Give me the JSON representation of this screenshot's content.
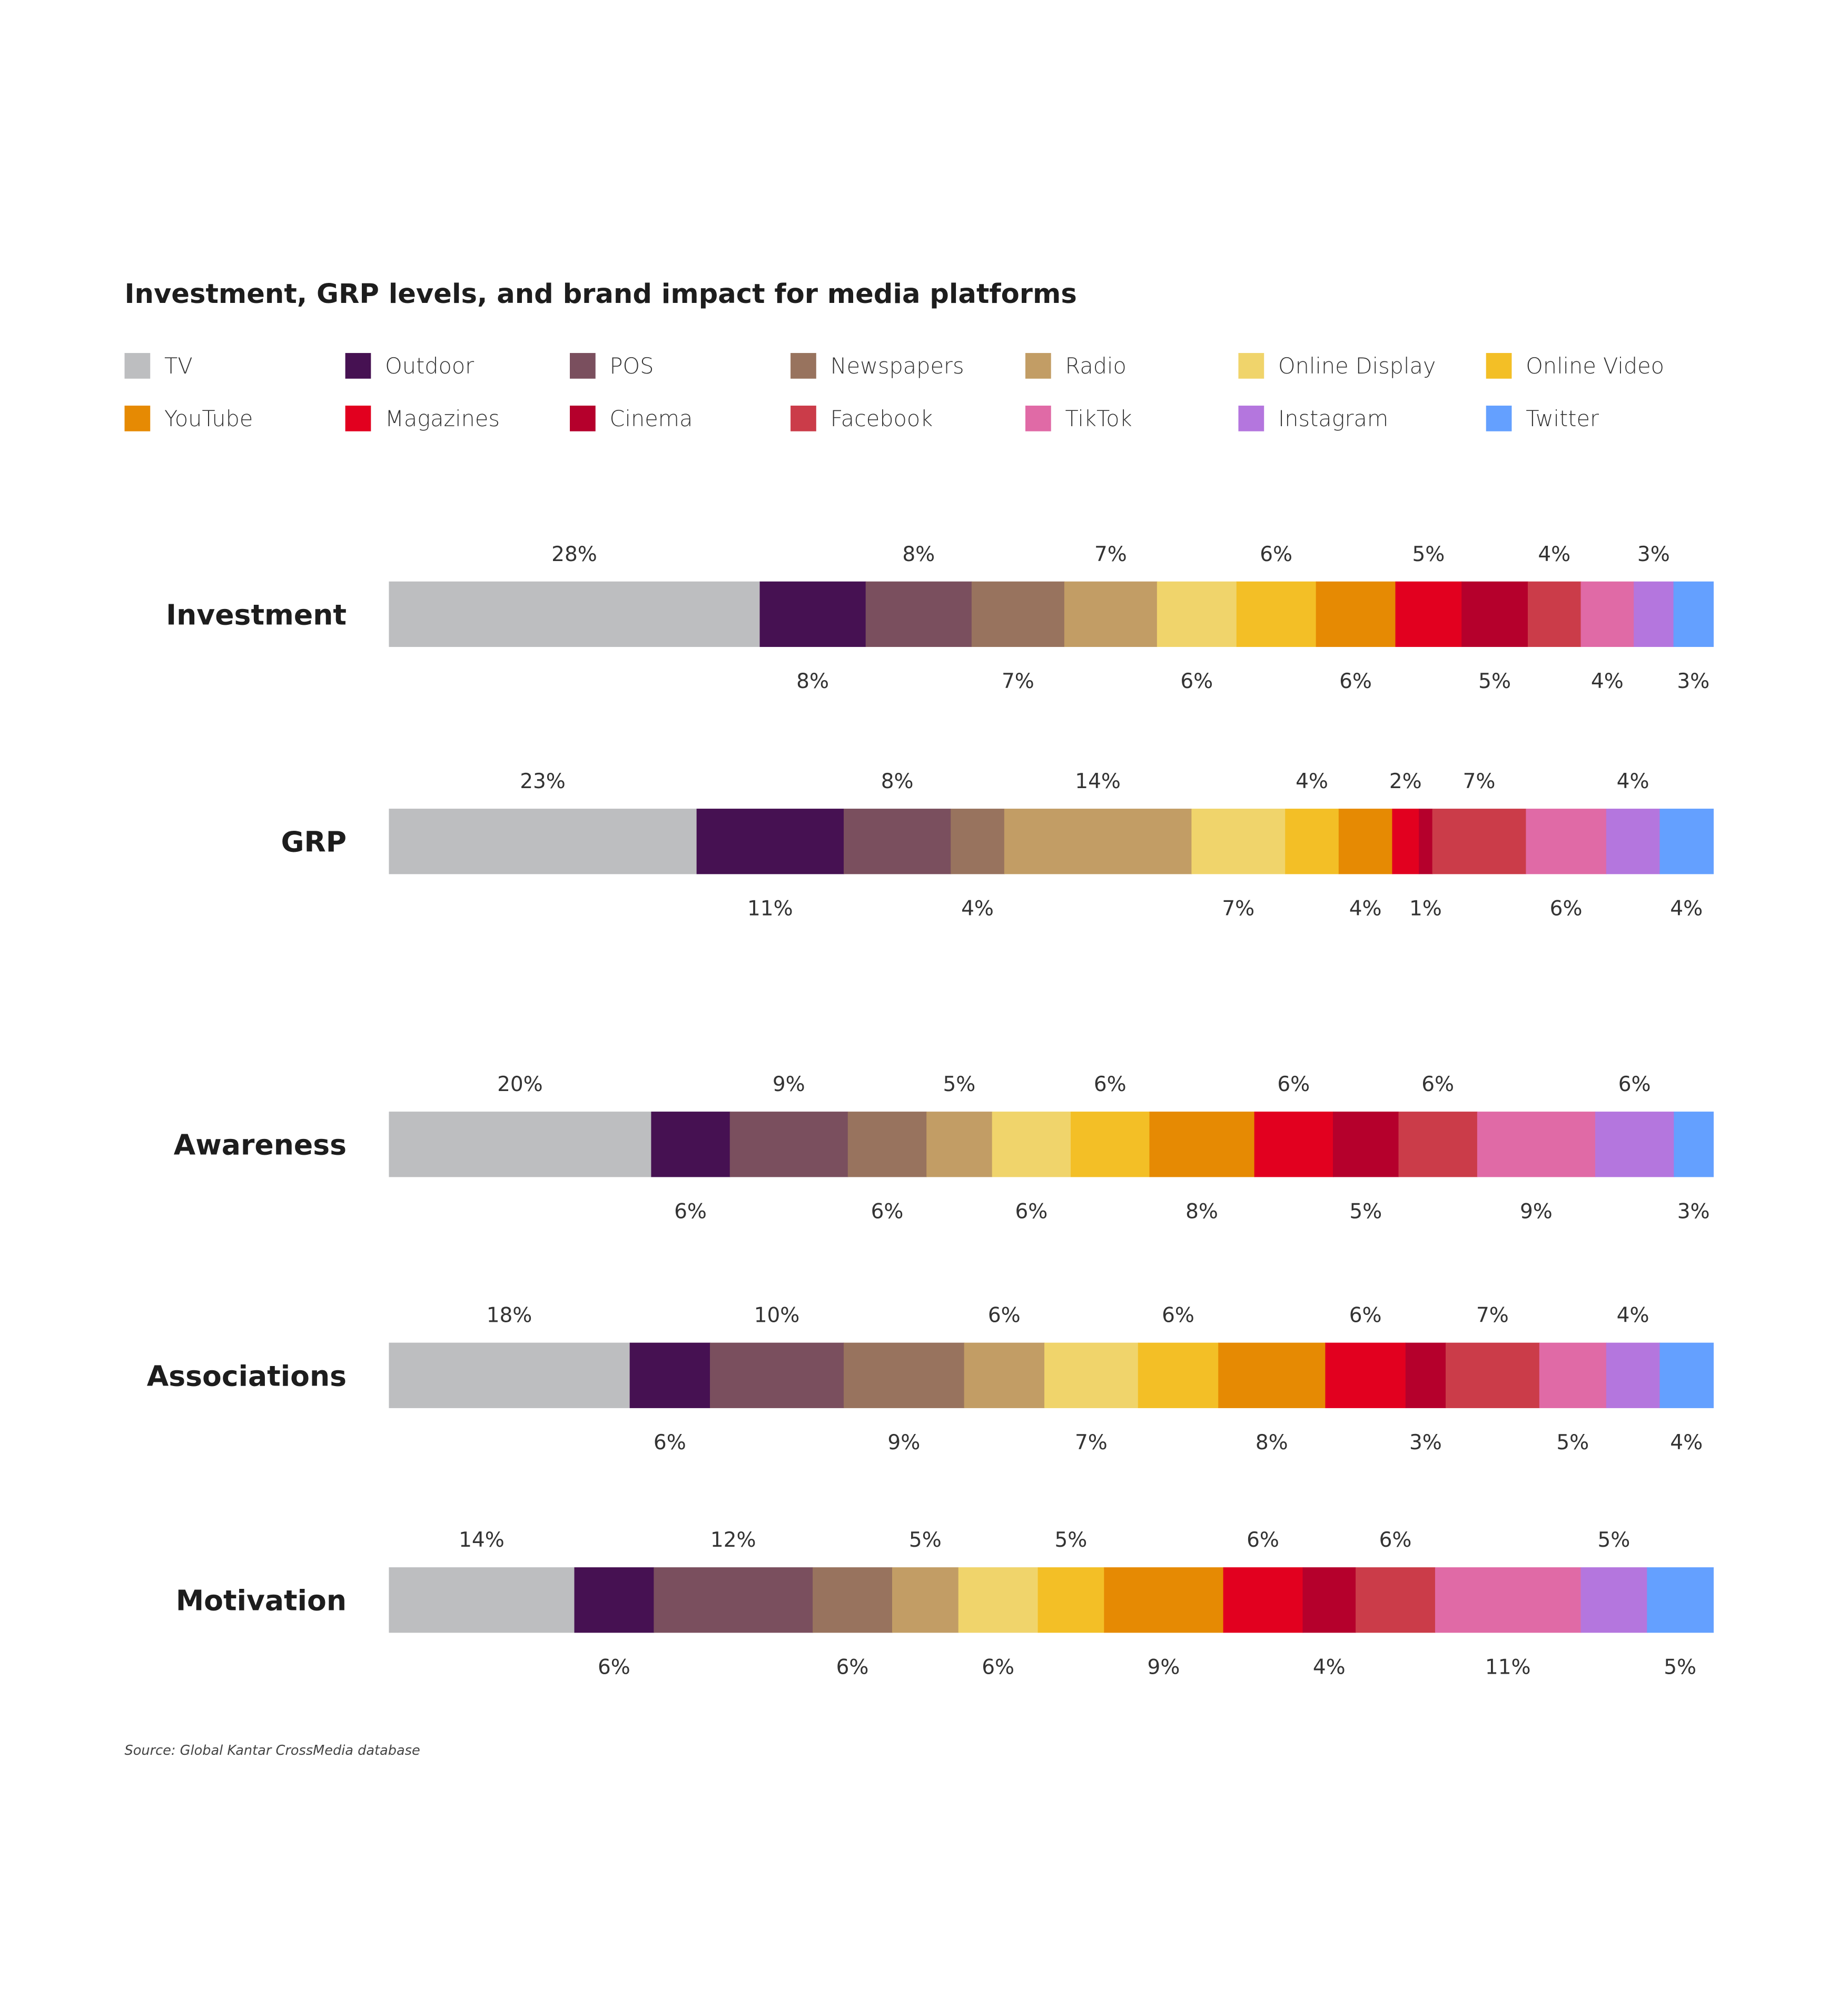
{
  "chart_data": {
    "type": "bar",
    "orientation": "horizontal-stacked-100",
    "title": "Investment, GRP levels, and brand impact for media platforms",
    "source": "Source: Global Kantar CrossMedia database",
    "legend_placement": "top",
    "grid": false,
    "series": [
      {
        "name": "TV",
        "color": "#bdbec0"
      },
      {
        "name": "Outdoor",
        "color": "#461152"
      },
      {
        "name": "POS",
        "color": "#7a4f5e"
      },
      {
        "name": "Newspapers",
        "color": "#98735e"
      },
      {
        "name": "Radio",
        "color": "#c29d65"
      },
      {
        "name": "Online Display",
        "color": "#f0d46b"
      },
      {
        "name": "Online Video",
        "color": "#f3bf26"
      },
      {
        "name": "YouTube",
        "color": "#e68a03"
      },
      {
        "name": "Magazines",
        "color": "#e2001f"
      },
      {
        "name": "Cinema",
        "color": "#b5002c"
      },
      {
        "name": "Facebook",
        "color": "#cb3c49"
      },
      {
        "name": "TikTok",
        "color": "#e06aa6"
      },
      {
        "name": "Instagram",
        "color": "#b476de"
      },
      {
        "name": "Twitter",
        "color": "#64a0ff"
      }
    ],
    "categories": [
      "Investment",
      "GRP",
      "Awareness",
      "Associations",
      "Motivation"
    ],
    "values": [
      [
        28,
        8,
        8,
        7,
        7,
        6,
        6,
        6,
        5,
        5,
        4,
        4,
        3,
        3
      ],
      [
        23,
        11,
        8,
        4,
        14,
        7,
        4,
        4,
        2,
        1,
        7,
        6,
        4,
        4
      ],
      [
        20,
        6,
        9,
        6,
        5,
        6,
        6,
        8,
        6,
        5,
        6,
        9,
        6,
        3
      ],
      [
        18,
        6,
        10,
        9,
        6,
        7,
        6,
        8,
        6,
        3,
        7,
        5,
        4,
        4
      ],
      [
        14,
        6,
        12,
        6,
        5,
        6,
        5,
        9,
        6,
        4,
        6,
        11,
        5,
        5
      ]
    ],
    "value_suffix": "%"
  }
}
